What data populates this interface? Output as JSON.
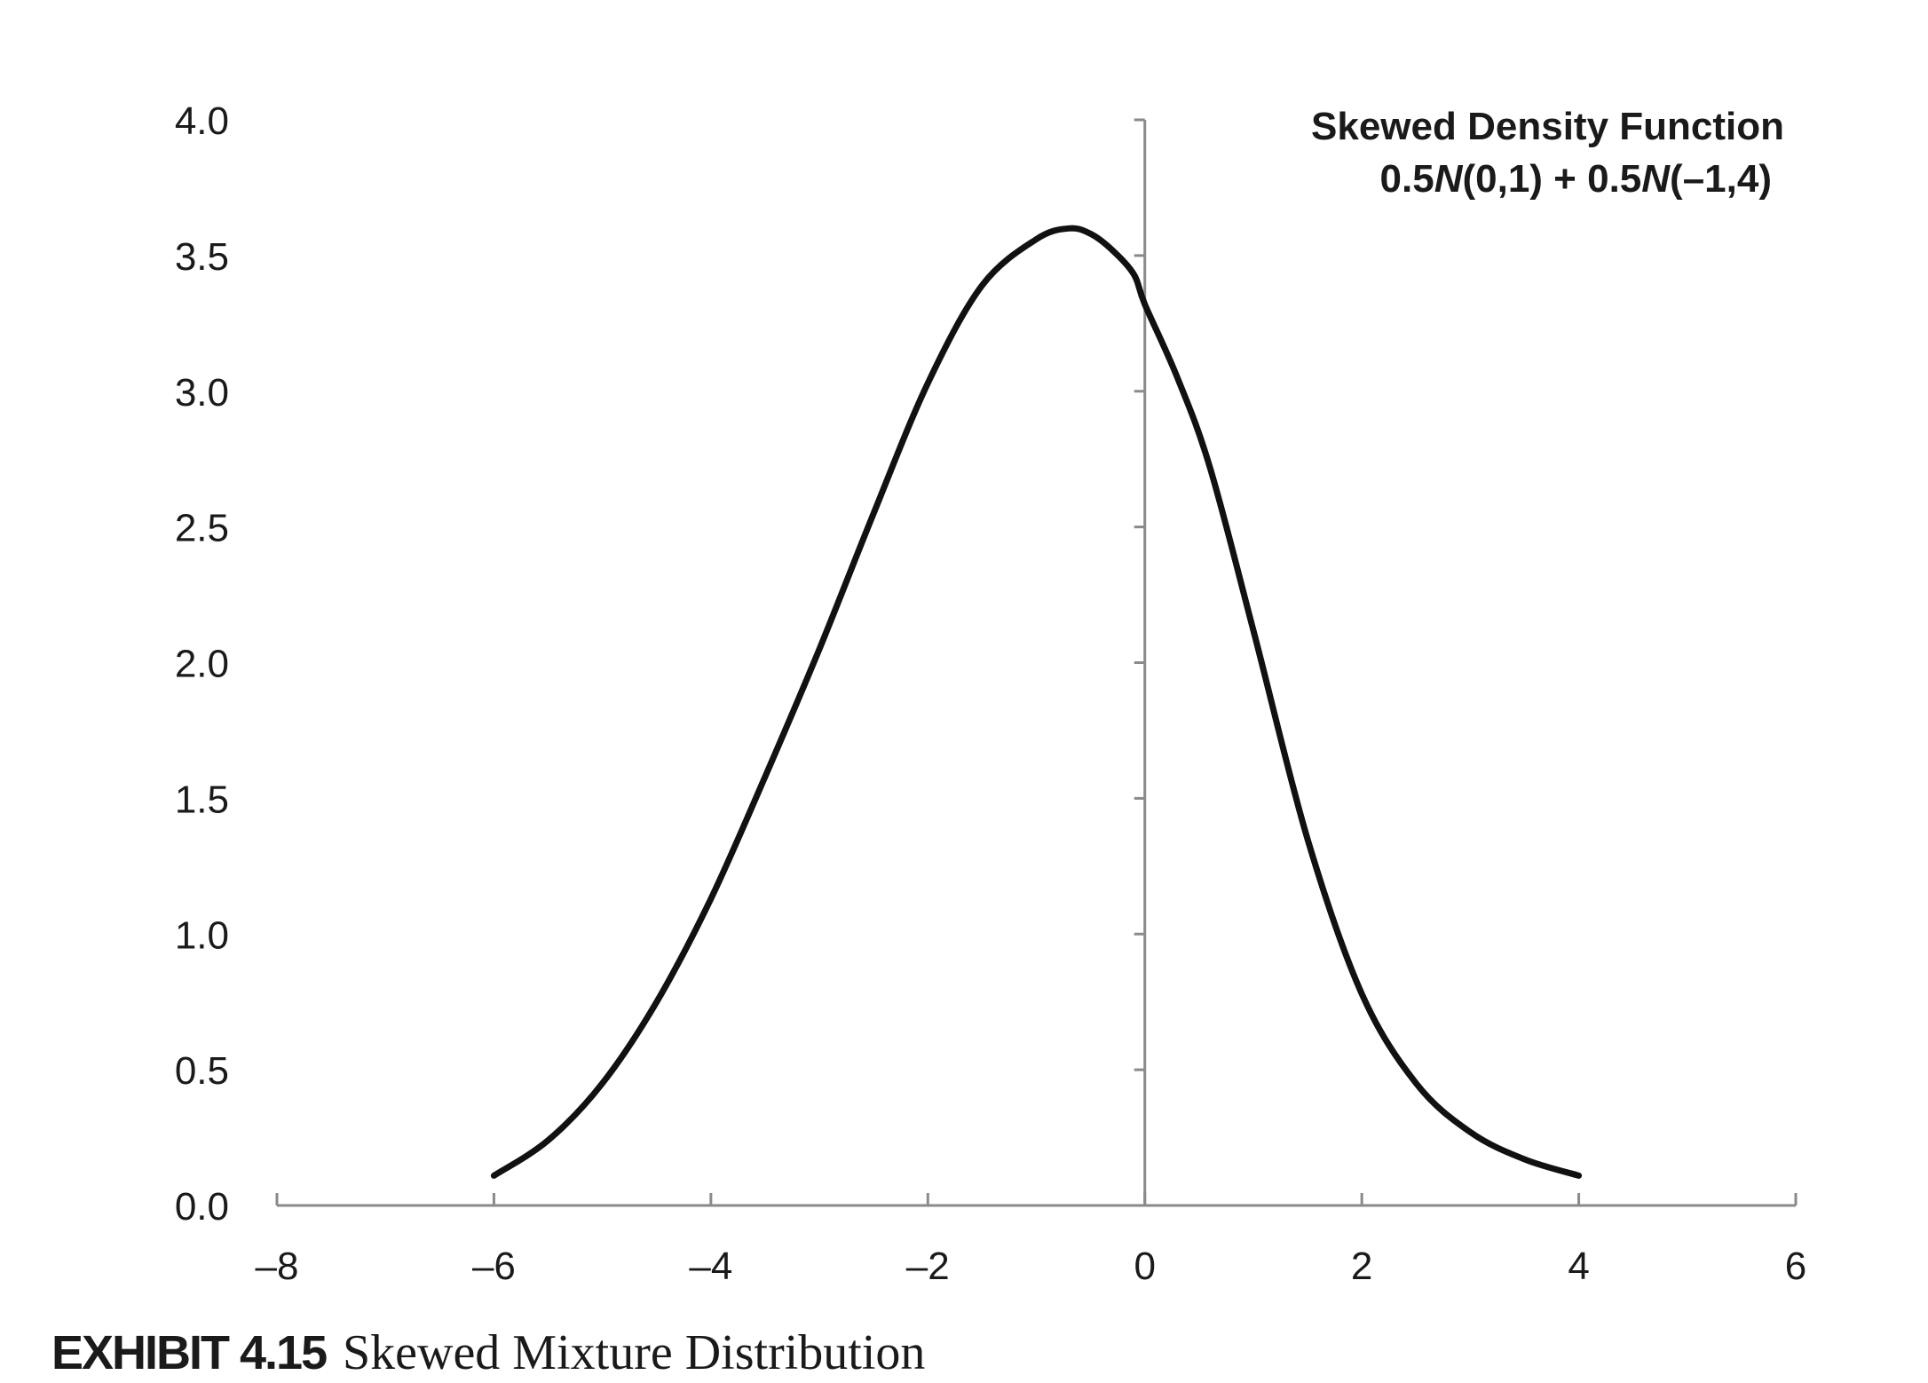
{
  "chart_data": {
    "type": "line",
    "title": "Skewed Density Function",
    "subtitle": "0.5N(0,1) + 0.5N(–1,4)",
    "subtitle_parts": [
      "0.5",
      "N",
      "(0,1) + 0.5",
      "N",
      "(–1,4)"
    ],
    "xlabel": "",
    "ylabel": "",
    "xlim": [
      -8,
      6
    ],
    "ylim": [
      0,
      4.0
    ],
    "x_ticks": [
      -8,
      -6,
      -4,
      -2,
      0,
      2,
      4,
      6
    ],
    "x_tick_labels": [
      "–8",
      "–6",
      "–4",
      "–2",
      "0",
      "2",
      "4",
      "6"
    ],
    "y_ticks": [
      0,
      0.5,
      1.0,
      1.5,
      2.0,
      2.5,
      3.0,
      3.5,
      4.0
    ],
    "y_tick_labels": [
      "0.0",
      "0.5",
      "1.0",
      "1.5",
      "2.0",
      "2.5",
      "3.0",
      "3.5",
      "4.0"
    ],
    "grid": false,
    "legend_position": "top-right",
    "series": [
      {
        "name": "Skewed Density Function",
        "color": "#111111",
        "x": [
          -6.0,
          -5.5,
          -5.0,
          -4.5,
          -4.0,
          -3.5,
          -3.0,
          -2.5,
          -2.0,
          -1.5,
          -1.0,
          -0.7,
          -0.5,
          -0.3,
          -0.1,
          0.0,
          0.3,
          0.6,
          1.0,
          1.5,
          2.0,
          2.5,
          3.0,
          3.5,
          4.0
        ],
        "values": [
          0.11,
          0.24,
          0.45,
          0.75,
          1.13,
          1.58,
          2.05,
          2.55,
          3.03,
          3.39,
          3.56,
          3.6,
          3.58,
          3.52,
          3.43,
          3.32,
          3.05,
          2.72,
          2.12,
          1.35,
          0.78,
          0.45,
          0.27,
          0.17,
          0.11
        ]
      }
    ]
  },
  "caption": {
    "number": "EXHIBIT 4.15",
    "title": "Skewed Mixture Distribution"
  },
  "colors": {
    "axis": "#8a8a8a",
    "curve": "#111111",
    "text": "#1a1a1a"
  }
}
